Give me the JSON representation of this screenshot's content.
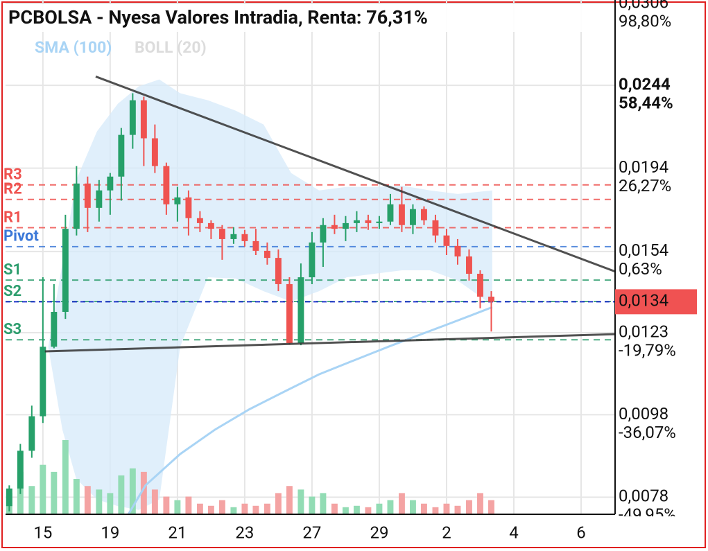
{
  "chart_data": {
    "type": "candlestick",
    "title": "PCBOLSA - Nyesa Valores Intradia, Renta: 76,31%",
    "log_scale": true,
    "grid": true,
    "xlim": [
      -1.11,
      17.01
    ],
    "xticks": [
      {
        "value": 0,
        "label": "15"
      },
      {
        "value": 2,
        "label": "19"
      },
      {
        "value": 4,
        "label": "21"
      },
      {
        "value": 6,
        "label": "23"
      },
      {
        "value": 8,
        "label": "27"
      },
      {
        "value": 10,
        "label": "29"
      },
      {
        "value": 12,
        "label": "2"
      },
      {
        "value": 14,
        "label": "4"
      },
      {
        "value": 16,
        "label": "6"
      }
    ],
    "ylim": [
      0.00744,
      0.0309
    ],
    "yticks": [
      {
        "value": 0.0306,
        "label": "0,0306"
      },
      {
        "value": 0.0244,
        "label": "0,0244"
      },
      {
        "value": 0.0194,
        "label": "0,0194"
      },
      {
        "value": 0.0154,
        "label": "0,0154"
      },
      {
        "value": 0.0123,
        "label": "0,0123"
      },
      {
        "value": 0.0098,
        "label": "0,0098"
      },
      {
        "value": 0.0078,
        "label": "0,0078"
      }
    ],
    "ytick_percent_labels": [
      "98,80%",
      "58,44%",
      "26,27%",
      "0,63%",
      "-19,79%",
      "-36,07%",
      "-49,95%"
    ],
    "current_price": {
      "value": 0.0134,
      "label": "0,0134",
      "color": "#f05252",
      "line_color": "#2233cc"
    },
    "candles": {
      "up_color": "#26a069",
      "down_color": "#ef5350",
      "volume_up_color": "#92dcb4",
      "volume_down_color": "#f4a3a3",
      "x": [
        -1,
        -0.67,
        -0.33,
        0,
        0.33,
        0.67,
        1,
        1.33,
        1.67,
        2,
        2.33,
        2.67,
        3,
        3.33,
        3.67,
        4,
        4.33,
        4.67,
        5,
        5.33,
        5.67,
        6,
        6.33,
        6.67,
        7,
        7.33,
        7.67,
        8,
        8.33,
        8.67,
        9,
        9.33,
        9.67,
        10,
        10.33,
        10.67,
        11,
        11.33,
        11.67,
        12,
        12.33,
        12.67,
        13,
        13.33
      ],
      "open": [
        0.00761,
        0.00799,
        0.00887,
        0.00976,
        0.01183,
        0.01303,
        0.0164,
        0.01859,
        0.01738,
        0.01824,
        0.01895,
        0.02127,
        0.02341,
        0.02107,
        0.01951,
        0.01755,
        0.01789,
        0.01689,
        0.01666,
        0.0164,
        0.01594,
        0.01616,
        0.01585,
        0.01543,
        0.01513,
        0.01407,
        0.01195,
        0.01434,
        0.01579,
        0.01657,
        0.0164,
        0.01666,
        0.01679,
        0.01666,
        0.01673,
        0.01755,
        0.01657,
        0.01732,
        0.01679,
        0.0161,
        0.01564,
        0.01519,
        0.01448,
        0.01359
      ],
      "high": [
        0.00806,
        0.00904,
        0.01005,
        0.01434,
        0.01407,
        0.01705,
        0.01951,
        0.01895,
        0.01877,
        0.01914,
        0.02168,
        0.02387,
        0.02364,
        0.02189,
        0.0197,
        0.01842,
        0.01824,
        0.01722,
        0.01679,
        0.01657,
        0.01647,
        0.01635,
        0.0164,
        0.01579,
        0.01549,
        0.01434,
        0.0149,
        0.01625,
        0.01689,
        0.01705,
        0.01699,
        0.01722,
        0.01705,
        0.01699,
        0.01806,
        0.01842,
        0.01755,
        0.01745,
        0.01705,
        0.0164,
        0.01594,
        0.01549,
        0.01462,
        0.0138
      ],
      "low": [
        0.0075,
        0.00787,
        0.0087,
        0.00958,
        0.01178,
        0.01278,
        0.0161,
        0.01625,
        0.01673,
        0.01705,
        0.01773,
        0.02047,
        0.01951,
        0.01914,
        0.01705,
        0.01673,
        0.0161,
        0.01625,
        0.01594,
        0.01505,
        0.01573,
        0.01561,
        0.01525,
        0.01485,
        0.0138,
        0.0119,
        0.01188,
        0.01407,
        0.01476,
        0.01616,
        0.01585,
        0.01625,
        0.01635,
        0.0164,
        0.01657,
        0.01625,
        0.01616,
        0.01657,
        0.01579,
        0.01525,
        0.01485,
        0.01421,
        0.01316,
        0.01234
      ],
      "close": [
        0.00799,
        0.00887,
        0.00976,
        0.01183,
        0.01303,
        0.0164,
        0.01859,
        0.01738,
        0.01824,
        0.01895,
        0.02127,
        0.02341,
        0.02107,
        0.01951,
        0.01755,
        0.01789,
        0.01689,
        0.01666,
        0.0164,
        0.01594,
        0.01616,
        0.01585,
        0.01543,
        0.01513,
        0.01407,
        0.01195,
        0.01434,
        0.01579,
        0.01657,
        0.0164,
        0.01666,
        0.01679,
        0.01666,
        0.01673,
        0.01755,
        0.01657,
        0.01732,
        0.01679,
        0.0161,
        0.01564,
        0.01519,
        0.01448,
        0.01359,
        0.0134
      ],
      "volume": [
        30,
        60,
        40,
        70,
        60,
        105,
        50,
        40,
        35,
        30,
        55,
        65,
        60,
        35,
        25,
        20,
        25,
        15,
        12,
        20,
        10,
        15,
        12,
        15,
        30,
        40,
        35,
        25,
        30,
        15,
        10,
        12,
        10,
        15,
        20,
        30,
        20,
        15,
        10,
        15,
        12,
        20,
        30,
        20
      ]
    },
    "sma": {
      "name": "SMA (100)",
      "color": "#a9d4f5",
      "x": [
        2.54,
        3.05,
        4.08,
        5.11,
        6.14,
        7.18,
        8.21,
        9.24,
        10.27,
        11.09,
        11.92,
        12.74,
        13.36
      ],
      "values": [
        0.00744,
        0.00806,
        0.00879,
        0.0094,
        0.00995,
        0.01045,
        0.01096,
        0.01139,
        0.01183,
        0.01218,
        0.01254,
        0.01291,
        0.0132
      ]
    },
    "boll": {
      "name": "BOLL (20)",
      "color": "#dcdcdc",
      "fill": "#d6eaf9",
      "x": [
        0.16,
        0.58,
        0.99,
        1.61,
        2.23,
        2.85,
        3.46,
        4.08,
        4.91,
        5.73,
        6.56,
        7.38,
        8.21,
        9.03,
        9.86,
        10.68,
        11.51,
        12.33,
        13.36
      ],
      "upper": [
        0.01183,
        0.0149,
        0.01877,
        0.02148,
        0.02319,
        0.02433,
        0.0248,
        0.02387,
        0.02341,
        0.02275,
        0.02189,
        0.01914,
        0.01824,
        0.01842,
        0.01842,
        0.01848,
        0.01824,
        0.01806,
        0.01824
      ],
      "lower": [
        0.01183,
        0.0094,
        0.00821,
        0.00775,
        0.00761,
        0.00753,
        0.00775,
        0.01183,
        0.01434,
        0.01429,
        0.0138,
        0.01341,
        0.0138,
        0.01434,
        0.01448,
        0.01462,
        0.01462,
        0.01421,
        0.01328
      ]
    },
    "pivot_levels": [
      {
        "name": "R3",
        "value": 0.01852,
        "color": "#ef5350"
      },
      {
        "name": "R2",
        "value": 0.01779,
        "color": "#ef5350"
      },
      {
        "name": "R1",
        "value": 0.01645,
        "color": "#ef5350"
      },
      {
        "name": "Pivot",
        "value": 0.01561,
        "color": "#3b78d8"
      },
      {
        "name": "S1",
        "value": 0.01423,
        "color": "#2e9e6e"
      },
      {
        "name": "S2",
        "value": 0.01341,
        "color": "#2e9e6e"
      },
      {
        "name": "S3",
        "value": 0.01206,
        "color": "#2e9e6e"
      }
    ],
    "trendlines": [
      {
        "x": [
          1.57,
          17.01
        ],
        "y": [
          0.025,
          0.01457
        ]
      },
      {
        "x": [
          0.06,
          17.01
        ],
        "y": [
          0.01168,
          0.01225
        ]
      }
    ]
  }
}
